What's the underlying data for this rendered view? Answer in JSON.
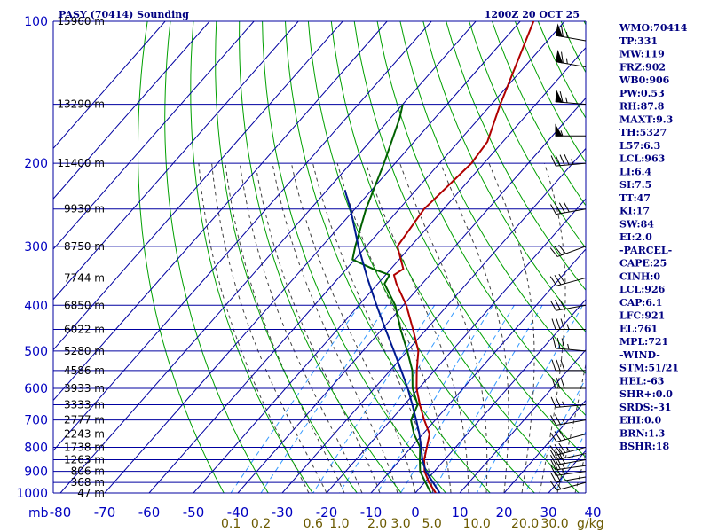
{
  "header": {
    "title": "PASY (70414) Sounding",
    "time": "1200Z 20 OCT 25"
  },
  "colors": {
    "isobar": "#0000a0",
    "isotherm": "#0000a0",
    "dry_adiabat": "#00a000",
    "moist_adiabat": "#404040",
    "mixing_ratio": "#3399ff",
    "temperature": "#b00000",
    "dewpoint": "#006000",
    "parcel": "#001a90"
  },
  "chart_data": {
    "type": "line",
    "title": "PASY (70414) Sounding",
    "y_axis_unit_label": "mb",
    "pressure_ticks": [
      100,
      200,
      300,
      400,
      500,
      600,
      700,
      800,
      900,
      1000
    ],
    "temperature_ticks": [
      -80,
      -70,
      -60,
      -50,
      -40,
      -30,
      -20,
      -10,
      0,
      10,
      20,
      30,
      40
    ],
    "mixing_ratio_ticks": [
      "0.1",
      "0.2",
      "0.6",
      "1.0",
      "2.0",
      "3.0",
      "5.0",
      "10.0",
      "20.0",
      "30.0"
    ],
    "mixing_ratio_unit": "g/kg",
    "height_levels": [
      {
        "p": 100,
        "label": "15960 m"
      },
      {
        "p": 150,
        "label": "13290 m"
      },
      {
        "p": 200,
        "label": "11400 m"
      },
      {
        "p": 250,
        "label": "9930 m"
      },
      {
        "p": 300,
        "label": "8750 m"
      },
      {
        "p": 350,
        "label": "7744 m"
      },
      {
        "p": 400,
        "label": "6850 m"
      },
      {
        "p": 450,
        "label": "6022 m"
      },
      {
        "p": 500,
        "label": "5280 m"
      },
      {
        "p": 550,
        "label": "4586 m"
      },
      {
        "p": 600,
        "label": "3933 m"
      },
      {
        "p": 650,
        "label": "3333 m"
      },
      {
        "p": 700,
        "label": "2777 m"
      },
      {
        "p": 750,
        "label": "2243 m"
      },
      {
        "p": 800,
        "label": "1738 m"
      },
      {
        "p": 850,
        "label": "1263 m"
      },
      {
        "p": 900,
        "label": "806 m"
      },
      {
        "p": 950,
        "label": "368 m"
      },
      {
        "p": 1000,
        "label": "47 m"
      }
    ],
    "series": [
      {
        "key": "temperature",
        "points": [
          [
            1000,
            4.6
          ],
          [
            950,
            1.0
          ],
          [
            900,
            -2.2
          ],
          [
            850,
            -4.6
          ],
          [
            800,
            -6.5
          ],
          [
            750,
            -8.5
          ],
          [
            700,
            -12.5
          ],
          [
            650,
            -16.5
          ],
          [
            600,
            -20.5
          ],
          [
            550,
            -24.0
          ],
          [
            500,
            -27.5
          ],
          [
            450,
            -33.0
          ],
          [
            400,
            -39.3
          ],
          [
            360,
            -45.8
          ],
          [
            345,
            -48.1
          ],
          [
            335,
            -47.2
          ],
          [
            300,
            -53.0
          ],
          [
            250,
            -54.4
          ],
          [
            200,
            -52.8
          ],
          [
            180,
            -53.5
          ],
          [
            150,
            -58.0
          ],
          [
            100,
            -67.0
          ]
        ]
      },
      {
        "key": "dewpoint",
        "points": [
          [
            1000,
            3.5
          ],
          [
            950,
            0.2
          ],
          [
            900,
            -3.2
          ],
          [
            850,
            -5.6
          ],
          [
            800,
            -8.0
          ],
          [
            750,
            -12.0
          ],
          [
            700,
            -15.5
          ],
          [
            650,
            -17.0
          ],
          [
            600,
            -21.4
          ],
          [
            550,
            -25.0
          ],
          [
            500,
            -30.0
          ],
          [
            450,
            -35.8
          ],
          [
            400,
            -41.8
          ],
          [
            360,
            -48.5
          ],
          [
            345,
            -49.1
          ],
          [
            335,
            -54.0
          ],
          [
            320,
            -60.5
          ],
          [
            300,
            -62.5
          ],
          [
            250,
            -67.5
          ],
          [
            200,
            -72.5
          ],
          [
            160,
            -78.0
          ],
          [
            150,
            -80.0
          ]
        ]
      },
      {
        "key": "parcel",
        "points": [
          [
            1000,
            5.5
          ],
          [
            950,
            1.9
          ],
          [
            900,
            -1.9
          ],
          [
            850,
            -5.0
          ],
          [
            800,
            -7.8
          ],
          [
            750,
            -10.8
          ],
          [
            700,
            -14.3
          ],
          [
            650,
            -18.2
          ],
          [
            600,
            -22.5
          ],
          [
            550,
            -27.5
          ],
          [
            500,
            -33.0
          ],
          [
            450,
            -39.2
          ],
          [
            400,
            -46.0
          ],
          [
            350,
            -53.5
          ],
          [
            300,
            -61.8
          ],
          [
            250,
            -71.0
          ],
          [
            228,
            -76.0
          ]
        ]
      }
    ],
    "wind_profile": [
      {
        "p": 1000,
        "dir": 250,
        "spd": 10
      },
      {
        "p": 950,
        "dir": 255,
        "spd": 15
      },
      {
        "p": 925,
        "dir": 260,
        "spd": 20
      },
      {
        "p": 900,
        "dir": 262,
        "spd": 25
      },
      {
        "p": 875,
        "dir": 262,
        "spd": 28
      },
      {
        "p": 850,
        "dir": 260,
        "spd": 30
      },
      {
        "p": 825,
        "dir": 258,
        "spd": 32
      },
      {
        "p": 800,
        "dir": 255,
        "spd": 35
      },
      {
        "p": 750,
        "dir": 255,
        "spd": 30
      },
      {
        "p": 700,
        "dir": 260,
        "spd": 25
      },
      {
        "p": 650,
        "dir": 265,
        "spd": 25
      },
      {
        "p": 600,
        "dir": 270,
        "spd": 30
      },
      {
        "p": 550,
        "dir": 270,
        "spd": 30
      },
      {
        "p": 500,
        "dir": 275,
        "spd": 35
      },
      {
        "p": 450,
        "dir": 270,
        "spd": 35
      },
      {
        "p": 400,
        "dir": 260,
        "spd": 30
      },
      {
        "p": 350,
        "dir": 255,
        "spd": 30
      },
      {
        "p": 300,
        "dir": 250,
        "spd": 30
      },
      {
        "p": 250,
        "dir": 260,
        "spd": 40
      },
      {
        "p": 200,
        "dir": 265,
        "spd": 45
      },
      {
        "p": 175,
        "dir": 270,
        "spd": 55
      },
      {
        "p": 150,
        "dir": 275,
        "spd": 65
      },
      {
        "p": 125,
        "dir": 280,
        "spd": 65
      },
      {
        "p": 110,
        "dir": 280,
        "spd": 65
      },
      {
        "p": 100,
        "dir": 280,
        "spd": 60
      }
    ]
  },
  "indices": [
    "WMO:70414",
    "TP:331",
    "MW:119",
    "FRZ:902",
    "WB0:906",
    "PW:0.53",
    "RH:87.8",
    "MAXT:9.3",
    "TH:5327",
    "L57:6.3",
    "LCL:963",
    "LI:6.4",
    "SI:7.5",
    "TT:47",
    "KI:17",
    "SW:84",
    "EI:2.0",
    "-PARCEL-",
    "CAPE:25",
    "CINH:0",
    "LCL:926",
    "CAP:6.1",
    "LFC:921",
    "EL:761",
    "MPL:721",
    "-WIND-",
    "STM:51/21",
    "HEL:-63",
    "SHR+:0.0",
    "SRDS:-31",
    "EHI:0.0",
    "BRN:1.3",
    "BSHR:18"
  ]
}
